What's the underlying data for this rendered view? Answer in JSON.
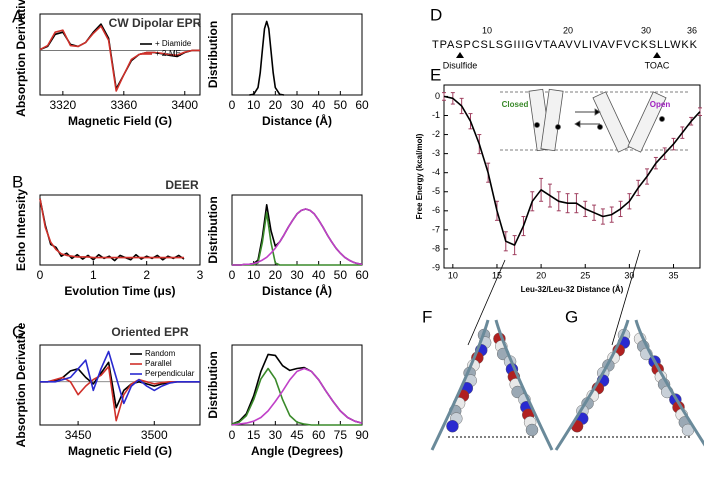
{
  "chart_data": [
    {
      "type": "line",
      "panel": "A",
      "title": "CW Dipolar EPR",
      "xlabel": "Magnetic Field (G)",
      "ylabel": "Absorption Derivative",
      "x": [
        3305,
        3310,
        3315,
        3320,
        3325,
        3330,
        3335,
        3340,
        3345,
        3350,
        3355,
        3360,
        3365,
        3370,
        3375,
        3380,
        3385,
        3390,
        3395,
        3400,
        3405,
        3410
      ],
      "series": [
        {
          "name": "+ Diamide",
          "color": "#000000",
          "values": [
            0.02,
            0.1,
            0.4,
            0.45,
            0.15,
            0.1,
            0.2,
            0.45,
            0.65,
            0.3,
            -0.95,
            -0.6,
            -0.25,
            -0.1,
            -0.05,
            -0.05,
            -0.08,
            -0.12,
            -0.15,
            -0.05,
            0,
            0
          ]
        },
        {
          "name": "+ 2-ME",
          "color": "#d0302a",
          "values": [
            0.02,
            0.12,
            0.45,
            0.5,
            0.12,
            0.1,
            0.2,
            0.42,
            0.6,
            0.25,
            -1,
            -0.6,
            -0.22,
            -0.1,
            -0.05,
            -0.05,
            -0.07,
            -0.1,
            -0.12,
            -0.04,
            0,
            0
          ]
        }
      ],
      "xlim": [
        3305,
        3410
      ],
      "xticks": [
        3320,
        3360,
        3400
      ],
      "ylim": [
        -1.1,
        0.9
      ],
      "zero_line": true,
      "legend": "upper right"
    },
    {
      "type": "line",
      "ylabel": "Distribution",
      "xlabel": "Distance (Å)",
      "x": [
        8,
        10,
        12,
        13,
        14,
        15,
        16,
        17,
        18,
        19,
        20,
        22,
        24
      ],
      "series": [
        {
          "color": "#000000",
          "values": [
            0,
            0.01,
            0.1,
            0.3,
            0.6,
            0.9,
            1,
            0.9,
            0.6,
            0.3,
            0.1,
            0.01,
            0
          ]
        }
      ],
      "xlim": [
        0,
        60
      ],
      "xticks": [
        0,
        10,
        20,
        30,
        40,
        50,
        60
      ],
      "ylim": [
        0,
        1.1
      ]
    },
    {
      "type": "line",
      "panel": "B",
      "title": "DEER",
      "xlabel": "Evolution Time (μs)",
      "ylabel": "Echo Intensity",
      "x": [
        0,
        0.1,
        0.2,
        0.3,
        0.4,
        0.5,
        0.6,
        0.7,
        0.8,
        0.9,
        1,
        1.1,
        1.2,
        1.3,
        1.4,
        1.5,
        1.6,
        1.7,
        1.8,
        1.9,
        2,
        2.1,
        2.2,
        2.3,
        2.4,
        2.5,
        2.6,
        2.7
      ],
      "series": [
        {
          "color": "#000000",
          "values": [
            1,
            0.64,
            0.38,
            0.34,
            0.22,
            0.26,
            0.19,
            0.24,
            0.18,
            0.23,
            0.17,
            0.24,
            0.19,
            0.22,
            0.16,
            0.23,
            0.2,
            0.17,
            0.24,
            0.18,
            0.22,
            0.19,
            0.23,
            0.17,
            0.22,
            0.19,
            0.23,
            0.18
          ]
        },
        {
          "color": "#d0302a",
          "values": [
            1,
            0.61,
            0.41,
            0.31,
            0.25,
            0.23,
            0.22,
            0.21,
            0.21,
            0.21,
            0.2,
            0.2,
            0.2,
            0.2,
            0.2,
            0.2,
            0.2,
            0.2,
            0.2,
            0.2,
            0.2,
            0.2,
            0.2,
            0.2,
            0.2,
            0.2,
            0.2,
            0.2
          ]
        }
      ],
      "xlim": [
        0,
        3
      ],
      "xticks": [
        0,
        1,
        2,
        3
      ],
      "ylim": [
        0.1,
        1.05
      ]
    },
    {
      "type": "line",
      "ylabel": "Distribution",
      "xlabel": "Distance (Å)",
      "x": [
        0,
        2,
        4,
        6,
        8,
        10,
        12,
        14,
        16,
        18,
        20,
        22,
        24,
        26,
        28,
        30,
        32,
        34,
        36,
        38,
        40,
        42,
        44,
        46,
        48,
        50,
        52,
        54,
        56,
        58,
        60
      ],
      "series": [
        {
          "color": "#000000",
          "values": [
            0,
            0,
            0,
            0.01,
            0.01,
            0.02,
            0.07,
            0.39,
            0.86,
            0.49,
            0.27,
            0.33,
            0.43,
            0.54,
            0.64,
            0.73,
            0.78,
            0.8,
            0.78,
            0.73,
            0.64,
            0.54,
            0.43,
            0.33,
            0.24,
            0.17,
            0.11,
            0.07,
            0.04,
            0.02,
            0.01
          ]
        },
        {
          "color": "#3a8a2a",
          "values": [
            0,
            0,
            0,
            0,
            0,
            0,
            0.03,
            0.32,
            0.75,
            0.32,
            0.03,
            0,
            0,
            0,
            0,
            0,
            0,
            0,
            0,
            0,
            0,
            0,
            0,
            0,
            0,
            0,
            0,
            0,
            0,
            0,
            0
          ]
        },
        {
          "color": "#c040c8",
          "values": [
            0,
            0,
            0,
            0.01,
            0.01,
            0.02,
            0.04,
            0.07,
            0.11,
            0.17,
            0.24,
            0.33,
            0.43,
            0.54,
            0.64,
            0.73,
            0.78,
            0.8,
            0.78,
            0.73,
            0.64,
            0.54,
            0.43,
            0.33,
            0.24,
            0.17,
            0.11,
            0.07,
            0.04,
            0.02,
            0.01
          ]
        }
      ],
      "xlim": [
        0,
        60
      ],
      "xticks": [
        0,
        10,
        20,
        30,
        40,
        50,
        60
      ],
      "ylim": [
        0,
        1
      ]
    },
    {
      "type": "line",
      "panel": "C",
      "title": "Oriented EPR",
      "xlabel": "Magnetic Field (G)",
      "ylabel": "Absorption Derivative",
      "x": [
        3425,
        3430,
        3435,
        3440,
        3445,
        3450,
        3455,
        3460,
        3465,
        3470,
        3475,
        3480,
        3485,
        3490,
        3495,
        3500,
        3505,
        3510,
        3515,
        3520,
        3525,
        3530
      ],
      "series": [
        {
          "name": "Random",
          "color": "#000000",
          "values": [
            0,
            0,
            0.02,
            0.1,
            0.25,
            0.3,
            0.1,
            -0.05,
            0.2,
            0.45,
            -0.6,
            -0.2,
            -0.05,
            0,
            -0.05,
            -0.1,
            -0.05,
            -0.02,
            0,
            0,
            0,
            0
          ]
        },
        {
          "name": "Parallel",
          "color": "#d0302a",
          "values": [
            0,
            0,
            0.05,
            0.1,
            0,
            -0.3,
            -0.1,
            0.05,
            0.15,
            0.35,
            -0.9,
            -0.3,
            -0.05,
            0.05,
            0,
            -0.05,
            -0.02,
            0,
            0,
            0,
            0,
            0
          ]
        },
        {
          "name": "Perpendicular",
          "color": "#2a2ad0",
          "values": [
            0,
            0,
            0,
            0.05,
            0.1,
            0.3,
            0.5,
            -0.2,
            0.3,
            0.7,
            0.1,
            -0.5,
            -0.1,
            0.05,
            -0.1,
            -0.2,
            -0.1,
            -0.03,
            0,
            0,
            0,
            0
          ]
        }
      ],
      "xlim": [
        3425,
        3530
      ],
      "xticks": [
        3450,
        3500
      ],
      "ylim": [
        -1,
        0.85
      ],
      "zero_line": true,
      "legend": "upper right"
    },
    {
      "type": "line",
      "ylabel": "Distribution",
      "xlabel": "Angle (Degrees)",
      "x": [
        0,
        5,
        10,
        15,
        20,
        25,
        30,
        35,
        40,
        45,
        50,
        55,
        60,
        65,
        70,
        75,
        80,
        85,
        90
      ],
      "series": [
        {
          "color": "#000000",
          "values": [
            0.01,
            0.04,
            0.12,
            0.31,
            0.57,
            0.75,
            0.74,
            0.63,
            0.58,
            0.6,
            0.61,
            0.57,
            0.48,
            0.36,
            0.25,
            0.15,
            0.08,
            0.04,
            0.02
          ]
        },
        {
          "color": "#3a8a2a",
          "values": [
            0.01,
            0.03,
            0.1,
            0.27,
            0.49,
            0.6,
            0.49,
            0.27,
            0.1,
            0.03,
            0.01,
            0,
            0,
            0,
            0,
            0,
            0,
            0,
            0
          ]
        },
        {
          "color": "#c040c8",
          "values": [
            0,
            0.01,
            0.02,
            0.04,
            0.08,
            0.15,
            0.25,
            0.36,
            0.48,
            0.57,
            0.6,
            0.57,
            0.48,
            0.36,
            0.25,
            0.15,
            0.08,
            0.04,
            0.02
          ]
        }
      ],
      "xlim": [
        0,
        90
      ],
      "xticks": [
        0,
        15,
        30,
        45,
        60,
        75,
        90
      ],
      "ylim": [
        0,
        0.85
      ]
    },
    {
      "type": "line",
      "panel": "E",
      "xlabel": "Leu-32/Leu-32 Distance (Å)",
      "ylabel": "Free Energy (kcal/mol)",
      "x": [
        9,
        10,
        11,
        12,
        13,
        14,
        15,
        16,
        17,
        18,
        19,
        20,
        21,
        22,
        23,
        24,
        25,
        26,
        27,
        28,
        29,
        30,
        31,
        32,
        33,
        34,
        35,
        36,
        37,
        38
      ],
      "series": [
        {
          "color": "#000000",
          "error_color": "#a04060",
          "values": [
            0,
            -0.1,
            -0.5,
            -1.3,
            -2.5,
            -4,
            -6,
            -7.6,
            -7.8,
            -6.8,
            -5.5,
            -4.9,
            -5.2,
            -5.5,
            -5.6,
            -5.6,
            -5.9,
            -6.1,
            -6.3,
            -6.2,
            -5.9,
            -5.5,
            -4.8,
            -4.2,
            -3.5,
            -3,
            -2.5,
            -1.9,
            -1.3,
            -0.8
          ],
          "errors": [
            0.2,
            0.3,
            0.4,
            0.4,
            0.5,
            0.5,
            0.5,
            0.5,
            0.5,
            0.5,
            0.5,
            0.6,
            0.6,
            0.5,
            0.5,
            0.5,
            0.4,
            0.4,
            0.4,
            0.4,
            0.4,
            0.4,
            0.4,
            0.4,
            0.3,
            0.3,
            0.3,
            0.3,
            0.2,
            0.2
          ]
        }
      ],
      "xlim": [
        9,
        38
      ],
      "xticks": [
        10,
        15,
        20,
        25,
        30,
        35
      ],
      "ylim": [
        -9,
        0.6
      ],
      "yticks": [
        0,
        -1,
        -2,
        -3,
        -4,
        -5,
        -6,
        -7,
        -8,
        -9
      ],
      "annotations": [
        {
          "text": "Closed",
          "color": "#3a8a2a"
        },
        {
          "text": "Open",
          "color": "#a020c0"
        }
      ]
    }
  ],
  "sequence_panel": {
    "label": "D",
    "sequence": "TPASPCSLSGIIIGVTAAVVLIVAVFVCKSLLWKK",
    "numbers": [
      "10",
      "20",
      "30",
      "36"
    ],
    "markers": [
      "Disulfide",
      "TOAC"
    ]
  },
  "structures": [
    {
      "label": "F"
    },
    {
      "label": "G"
    }
  ]
}
